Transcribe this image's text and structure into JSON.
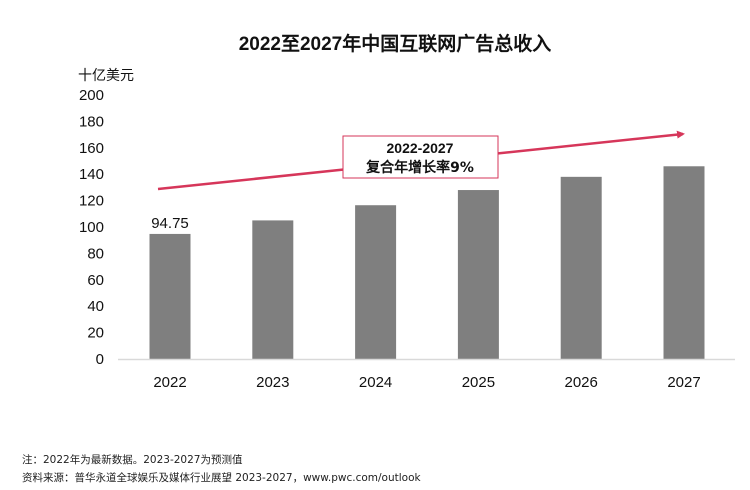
{
  "chart_data": {
    "type": "bar",
    "title": "2022至2027年中国互联网广告总收入",
    "ylabel": "十亿美元",
    "xlabel": "",
    "categories": [
      "2022",
      "2023",
      "2024",
      "2025",
      "2026",
      "2027"
    ],
    "values": [
      94.75,
      105,
      116.5,
      128,
      138,
      146
    ],
    "data_labels": {
      "2022": "94.75"
    },
    "ylim": [
      0,
      200
    ],
    "yticks": [
      0,
      20,
      40,
      60,
      80,
      100,
      120,
      140,
      160,
      180,
      200
    ],
    "grid": false,
    "bar_color": "#7f7f7f",
    "annotation": {
      "line1": "2022-2027",
      "line2": "复合年增长率9%",
      "arrow_color": "#d6365a"
    }
  },
  "footnotes": {
    "note": "注：2022年为最新数据。2023-2027为预测值",
    "source": "资料来源：普华永道全球娱乐及媒体行业展望 2023-2027，www.pwc.com/outlook"
  }
}
